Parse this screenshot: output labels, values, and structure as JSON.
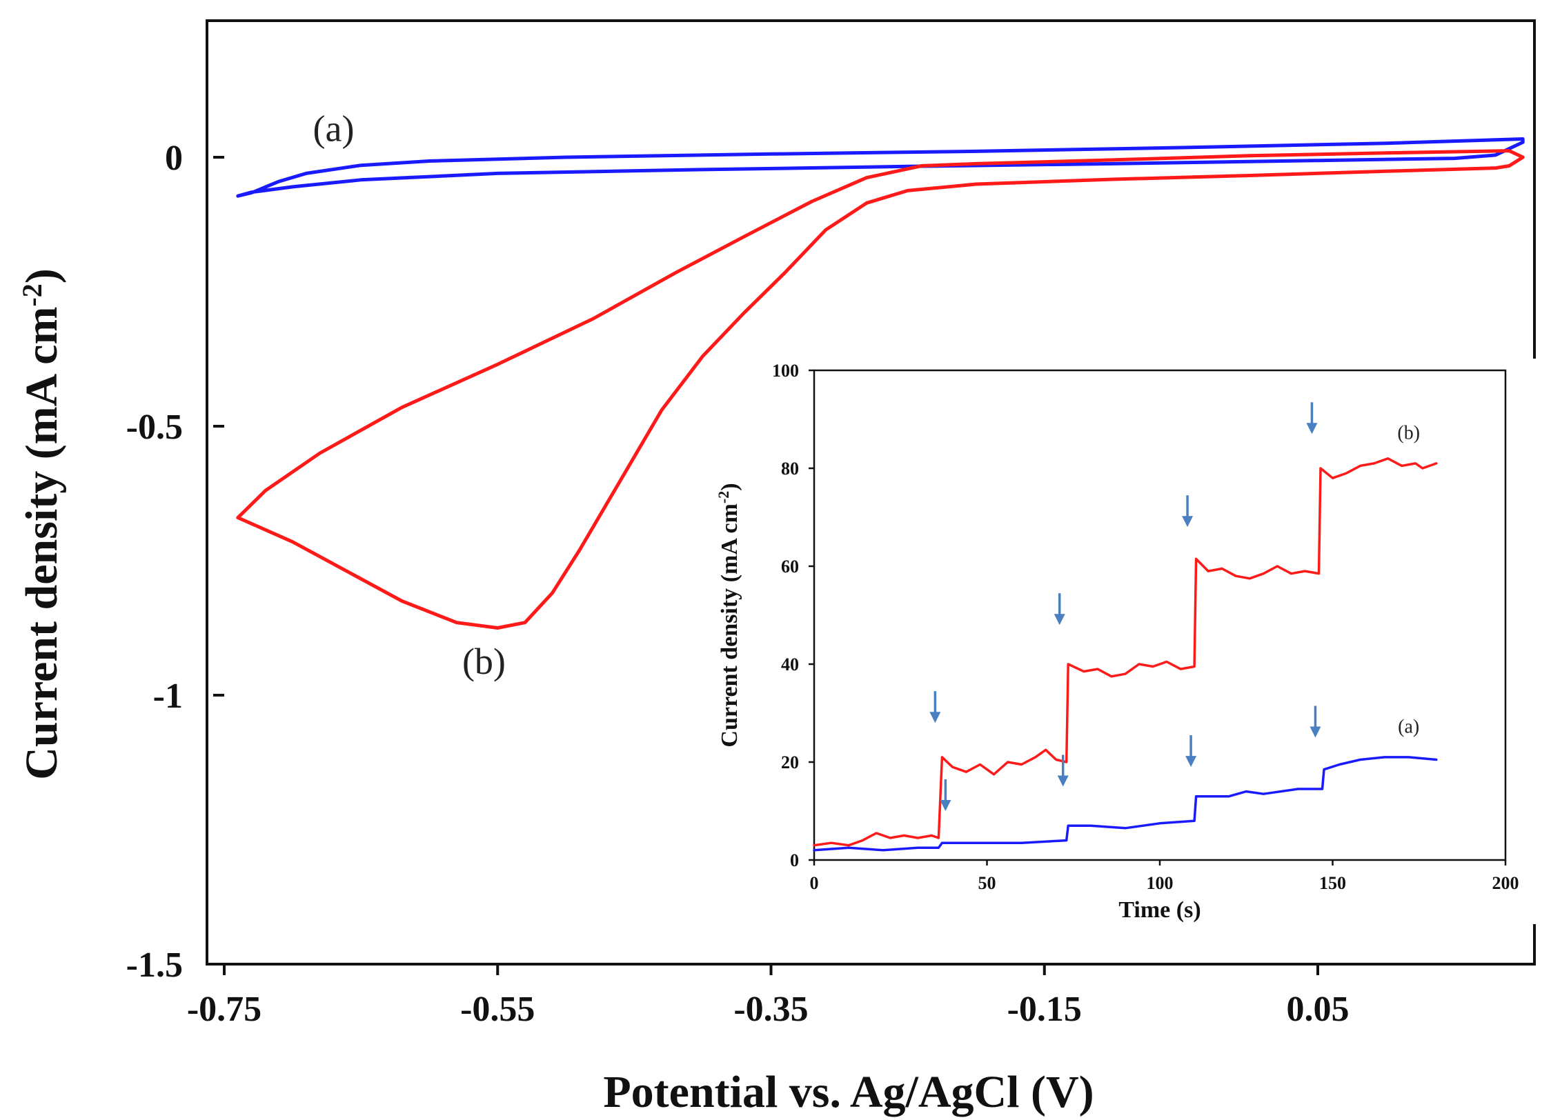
{
  "chart_data": [
    {
      "type": "line",
      "role": "main",
      "xlabel": "Potential vs. Ag/AgCl (V)",
      "ylabel": "Current density (mA cm",
      "ylabel_sup": "-2",
      "ylabel_close": ")",
      "xlim": [
        -0.75,
        0.25
      ],
      "ylim": [
        -1.5,
        0.25
      ],
      "xticks": [
        -0.75,
        -0.55,
        -0.35,
        -0.15,
        0.05
      ],
      "xtick_labels": [
        "-0.75",
        "-0.55",
        "-0.35",
        "-0.15",
        "0.05"
      ],
      "yticks": [
        0,
        -0.5,
        -1,
        -1.5
      ],
      "ytick_labels": [
        "0",
        "-0.5",
        "-1",
        "-1.5"
      ],
      "series": [
        {
          "name": "(a)",
          "color": "#1a1aff",
          "points": [
            [
              -0.74,
              -0.072
            ],
            [
              -0.73,
              -0.066
            ],
            [
              -0.71,
              -0.045
            ],
            [
              -0.69,
              -0.03
            ],
            [
              -0.65,
              -0.015
            ],
            [
              -0.6,
              -0.007
            ],
            [
              -0.5,
              0.0
            ],
            [
              -0.35,
              0.006
            ],
            [
              -0.2,
              0.011
            ],
            [
              -0.05,
              0.018
            ],
            [
              0.1,
              0.026
            ],
            [
              0.2,
              0.034
            ],
            [
              0.2,
              0.028
            ],
            [
              0.18,
              0.004
            ],
            [
              0.15,
              -0.002
            ],
            [
              0.05,
              -0.006
            ],
            [
              -0.1,
              -0.012
            ],
            [
              -0.25,
              -0.017
            ],
            [
              -0.4,
              -0.023
            ],
            [
              -0.55,
              -0.03
            ],
            [
              -0.65,
              -0.042
            ],
            [
              -0.7,
              -0.055
            ],
            [
              -0.73,
              -0.065
            ],
            [
              -0.74,
              -0.072
            ]
          ]
        },
        {
          "name": "(b)",
          "color": "#ff1a1a",
          "points": [
            [
              -0.74,
              -0.67
            ],
            [
              -0.72,
              -0.62
            ],
            [
              -0.68,
              -0.55
            ],
            [
              -0.62,
              -0.465
            ],
            [
              -0.55,
              -0.385
            ],
            [
              -0.48,
              -0.3
            ],
            [
              -0.42,
              -0.215
            ],
            [
              -0.37,
              -0.148
            ],
            [
              -0.32,
              -0.082
            ],
            [
              -0.28,
              -0.038
            ],
            [
              -0.24,
              -0.016
            ],
            [
              -0.2,
              -0.012
            ],
            [
              -0.1,
              -0.005
            ],
            [
              0.0,
              0.003
            ],
            [
              0.1,
              0.008
            ],
            [
              0.19,
              0.012
            ],
            [
              0.2,
              0.0
            ],
            [
              0.19,
              -0.016
            ],
            [
              0.18,
              -0.02
            ],
            [
              0.1,
              -0.026
            ],
            [
              0.0,
              -0.034
            ],
            [
              -0.1,
              -0.041
            ],
            [
              -0.2,
              -0.05
            ],
            [
              -0.25,
              -0.062
            ],
            [
              -0.28,
              -0.085
            ],
            [
              -0.31,
              -0.135
            ],
            [
              -0.34,
              -0.215
            ],
            [
              -0.37,
              -0.29
            ],
            [
              -0.4,
              -0.37
            ],
            [
              -0.43,
              -0.47
            ],
            [
              -0.46,
              -0.6
            ],
            [
              -0.49,
              -0.73
            ],
            [
              -0.51,
              -0.81
            ],
            [
              -0.53,
              -0.865
            ],
            [
              -0.55,
              -0.875
            ],
            [
              -0.58,
              -0.865
            ],
            [
              -0.62,
              -0.825
            ],
            [
              -0.66,
              -0.77
            ],
            [
              -0.7,
              -0.715
            ],
            [
              -0.74,
              -0.67
            ]
          ]
        }
      ],
      "annotations": [
        {
          "text": "(a)",
          "x": -0.67,
          "y": 0.03
        },
        {
          "text": "(b)",
          "x": -0.56,
          "y": -0.96
        }
      ]
    },
    {
      "type": "line",
      "role": "inset",
      "xlabel": "Time (s)",
      "ylabel": "Current density (mA cm",
      "ylabel_sup": "-2",
      "ylabel_close": ")",
      "xlim": [
        0,
        200
      ],
      "ylim": [
        0,
        100
      ],
      "xticks": [
        0,
        50,
        100,
        150,
        200
      ],
      "xtick_labels": [
        "0",
        "50",
        "100",
        "150",
        "200"
      ],
      "yticks": [
        0,
        20,
        40,
        60,
        80,
        100
      ],
      "ytick_labels": [
        "0",
        "20",
        "40",
        "60",
        "80",
        "100"
      ],
      "series": [
        {
          "name": "(b)",
          "color": "#ff1a1a",
          "points": [
            [
              0,
              3
            ],
            [
              5,
              3.5
            ],
            [
              10,
              3
            ],
            [
              14,
              4
            ],
            [
              18,
              5.5
            ],
            [
              22,
              4.5
            ],
            [
              26,
              5
            ],
            [
              30,
              4.5
            ],
            [
              34,
              5
            ],
            [
              36,
              4.5
            ],
            [
              37,
              21
            ],
            [
              40,
              19
            ],
            [
              44,
              18
            ],
            [
              48,
              19.5
            ],
            [
              52,
              17.5
            ],
            [
              56,
              20
            ],
            [
              60,
              19.5
            ],
            [
              64,
              21
            ],
            [
              67,
              22.5
            ],
            [
              70,
              20.5
            ],
            [
              73,
              20
            ],
            [
              73.5,
              40
            ],
            [
              78,
              38.5
            ],
            [
              82,
              39
            ],
            [
              86,
              37.5
            ],
            [
              90,
              38
            ],
            [
              94,
              40
            ],
            [
              98,
              39.5
            ],
            [
              102,
              40.5
            ],
            [
              106,
              39
            ],
            [
              110,
              39.5
            ],
            [
              110.5,
              61.5
            ],
            [
              114,
              59
            ],
            [
              118,
              59.5
            ],
            [
              122,
              58
            ],
            [
              126,
              57.5
            ],
            [
              130,
              58.5
            ],
            [
              134,
              60
            ],
            [
              138,
              58.5
            ],
            [
              142,
              59
            ],
            [
              146,
              58.5
            ],
            [
              146.5,
              80
            ],
            [
              150,
              78
            ],
            [
              154,
              79
            ],
            [
              158,
              80.5
            ],
            [
              162,
              81
            ],
            [
              166,
              82
            ],
            [
              170,
              80.5
            ],
            [
              174,
              81
            ],
            [
              176,
              80
            ],
            [
              180,
              81
            ]
          ]
        },
        {
          "name": "(a)",
          "color": "#1a1aff",
          "points": [
            [
              0,
              2
            ],
            [
              10,
              2.5
            ],
            [
              20,
              2
            ],
            [
              30,
              2.5
            ],
            [
              36,
              2.5
            ],
            [
              37,
              3.5
            ],
            [
              50,
              3.5
            ],
            [
              60,
              3.5
            ],
            [
              73,
              4
            ],
            [
              73.5,
              7
            ],
            [
              80,
              7
            ],
            [
              90,
              6.5
            ],
            [
              100,
              7.5
            ],
            [
              110,
              8
            ],
            [
              110.5,
              13
            ],
            [
              120,
              13
            ],
            [
              125,
              14
            ],
            [
              130,
              13.5
            ],
            [
              140,
              14.5
            ],
            [
              147,
              14.5
            ],
            [
              147.5,
              18.5
            ],
            [
              152,
              19.5
            ],
            [
              158,
              20.5
            ],
            [
              165,
              21
            ],
            [
              172,
              21
            ],
            [
              180,
              20.5
            ]
          ]
        }
      ],
      "arrows_red": [
        [
          35,
          28
        ],
        [
          71,
          48
        ],
        [
          108,
          68
        ],
        [
          144,
          87
        ]
      ],
      "arrows_blue": [
        [
          38,
          10
        ],
        [
          72,
          15
        ],
        [
          109,
          19
        ],
        [
          145,
          25
        ]
      ],
      "annotations": [
        {
          "text": "(b)",
          "x": 172,
          "y": 86
        },
        {
          "text": "(a)",
          "x": 172,
          "y": 26
        }
      ]
    }
  ]
}
